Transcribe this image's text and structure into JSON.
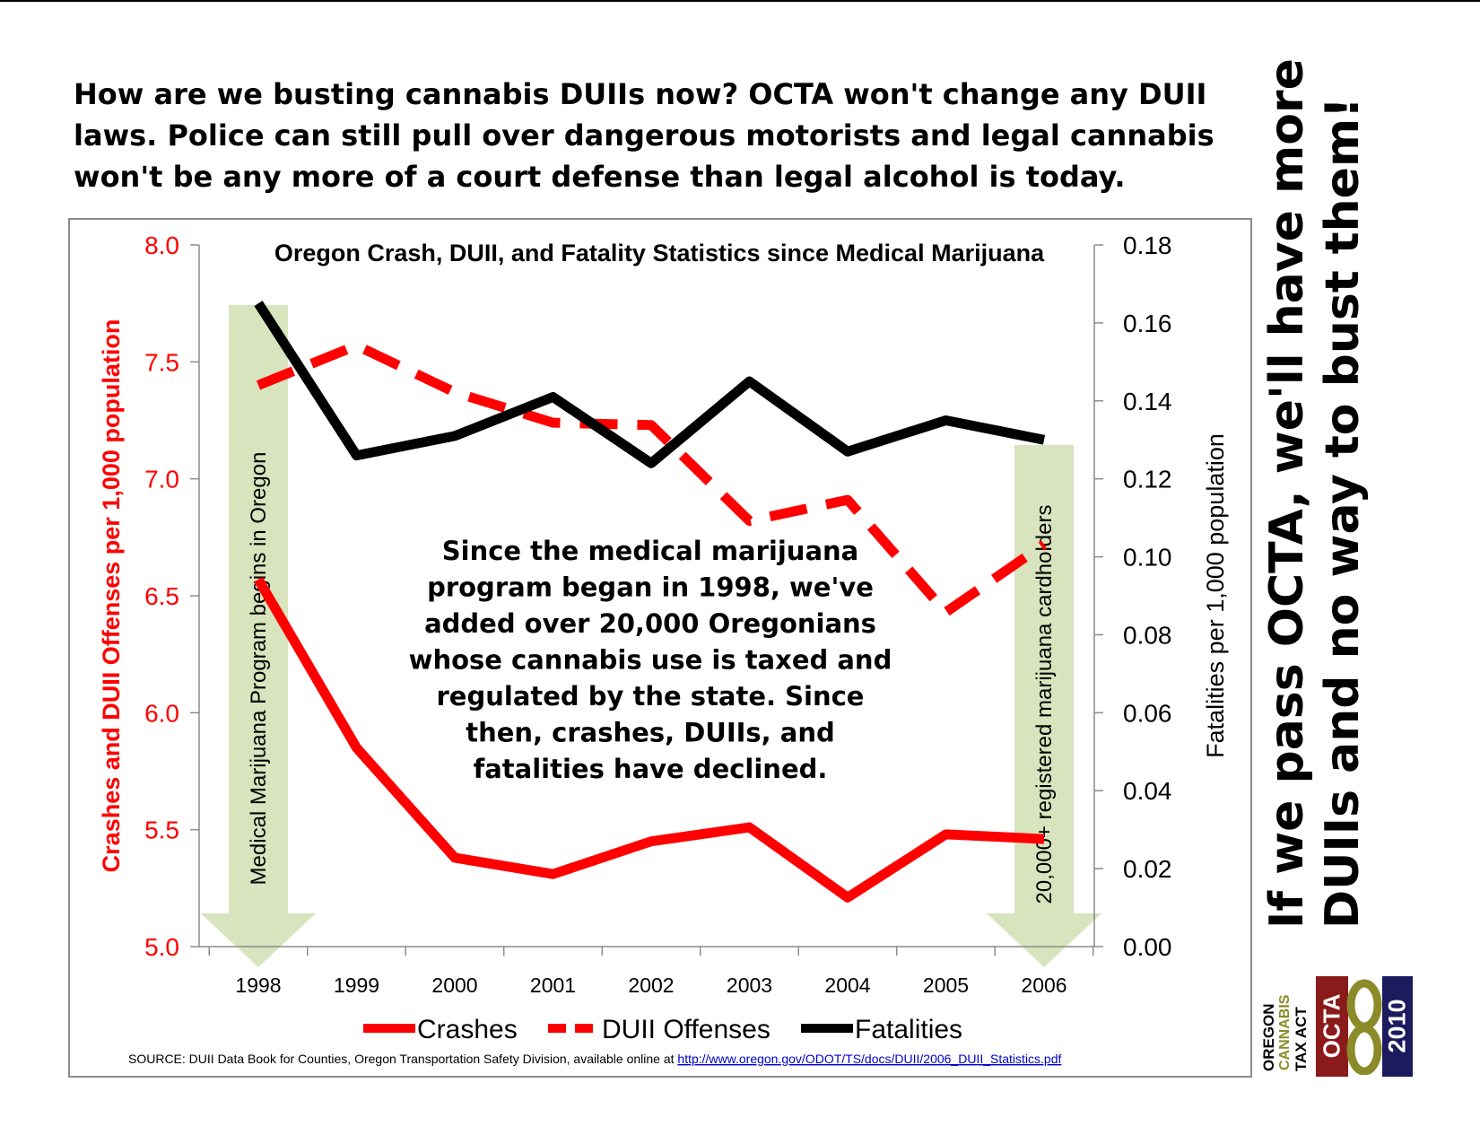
{
  "headline": "How are we busting cannabis DUIIs now?  OCTA won't change any DUII laws.  Police can still pull over dangerous motorists and legal cannabis won't be any more of a court defense than legal alcohol is today.",
  "slogan": {
    "line1": "If we pass OCTA, we'll have more",
    "line2": "DUIIs and no way to bust them!"
  },
  "logo": {
    "oregon": "OREGON",
    "cannabis": "CANNABIS",
    "taxact": "TAX ACT",
    "octa": "OCTA",
    "year": "2010",
    "colors": {
      "red": "#8b1a1a",
      "navy": "#1b1b5e",
      "olive": "#8b8b2a"
    }
  },
  "chart_data": {
    "type": "line",
    "title": "Oregon Crash, DUII, and Fatality Statistics since Medical Marijuana",
    "categories": [
      "1998",
      "1999",
      "2000",
      "2001",
      "2002",
      "2003",
      "2004",
      "2005",
      "2006"
    ],
    "y_left": {
      "label": "Crashes and DUII Offenses per 1,000 population",
      "range": [
        5.0,
        8.0
      ],
      "ticks": [
        "5.0",
        "5.5",
        "6.0",
        "6.5",
        "7.0",
        "7.5",
        "8.0"
      ],
      "color": "#ff0000"
    },
    "y_right": {
      "label": "Fatalities per 1,000 population",
      "range": [
        0.0,
        0.18
      ],
      "ticks": [
        "0.00",
        "0.02",
        "0.04",
        "0.06",
        "0.08",
        "0.10",
        "0.12",
        "0.14",
        "0.16",
        "0.18"
      ],
      "color": "#000000"
    },
    "series": [
      {
        "name": "Crashes",
        "axis": "left",
        "style": "solid",
        "color": "#ff0000",
        "values": [
          6.57,
          5.85,
          5.38,
          5.31,
          5.45,
          5.51,
          5.21,
          5.48,
          5.46
        ]
      },
      {
        "name": "DUII Offenses",
        "axis": "left",
        "style": "dashed",
        "color": "#ff0000",
        "values": [
          7.4,
          7.57,
          7.37,
          7.24,
          7.23,
          6.82,
          6.91,
          6.43,
          6.72
        ]
      },
      {
        "name": "Fatalities",
        "axis": "right",
        "style": "solid",
        "color": "#000000",
        "values": [
          0.165,
          0.126,
          0.131,
          0.141,
          0.124,
          0.145,
          0.127,
          0.135,
          0.13
        ]
      }
    ],
    "annotations": {
      "left_arrow": "Medical Marijuana Program begins in Oregon",
      "right_arrow": "20,000+ registered marijuana cardholders",
      "center_text": [
        "Since the medical marijuana",
        "program began in 1998, we've",
        "added over 20,000 Oregonians",
        "whose cannabis use is taxed and",
        "regulated by the state.  Since",
        "then, crashes, DUIIs, and",
        "fatalities have declined."
      ],
      "arrow_color": "#d7e4bd"
    },
    "legend_position": "bottom",
    "grid": false,
    "source": {
      "prefix": "SOURCE: DUII Data Book for Counties, Oregon Transportation Safety Division, available online at ",
      "link": "http://www.oregon.gov/ODOT/TS/docs/DUII/2006_DUII_Statistics.pdf"
    }
  }
}
